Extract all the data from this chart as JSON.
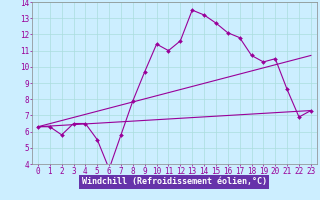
{
  "xlabel": "Windchill (Refroidissement éolien,°C)",
  "bg_color": "#cceeff",
  "plot_bg_color": "#cceeff",
  "line_color": "#990099",
  "xlabel_bg_color": "#6633aa",
  "xlabel_text_color": "#ffffff",
  "xlim": [
    -0.5,
    23.5
  ],
  "ylim": [
    4,
    14
  ],
  "xticks": [
    0,
    1,
    2,
    3,
    4,
    5,
    6,
    7,
    8,
    9,
    10,
    11,
    12,
    13,
    14,
    15,
    16,
    17,
    18,
    19,
    20,
    21,
    22,
    23
  ],
  "yticks": [
    4,
    5,
    6,
    7,
    8,
    9,
    10,
    11,
    12,
    13,
    14
  ],
  "line1_x": [
    0,
    1,
    2,
    3,
    4,
    5,
    6,
    7,
    8,
    9,
    10,
    11,
    12,
    13,
    14,
    15,
    16,
    17,
    18,
    19,
    20,
    21,
    22,
    23
  ],
  "line1_y": [
    6.3,
    6.3,
    5.8,
    6.5,
    6.5,
    5.5,
    3.7,
    5.8,
    7.9,
    9.7,
    11.4,
    11.0,
    11.6,
    13.5,
    13.2,
    12.7,
    12.1,
    11.8,
    10.7,
    10.3,
    10.5,
    8.6,
    6.9,
    7.3
  ],
  "line2_x": [
    0,
    23
  ],
  "line2_y": [
    6.3,
    10.7
  ],
  "line3_x": [
    0,
    23
  ],
  "line3_y": [
    6.3,
    7.3
  ],
  "grid_color": "#aadddd",
  "font_size": 5.5,
  "label_font_size": 6.0
}
